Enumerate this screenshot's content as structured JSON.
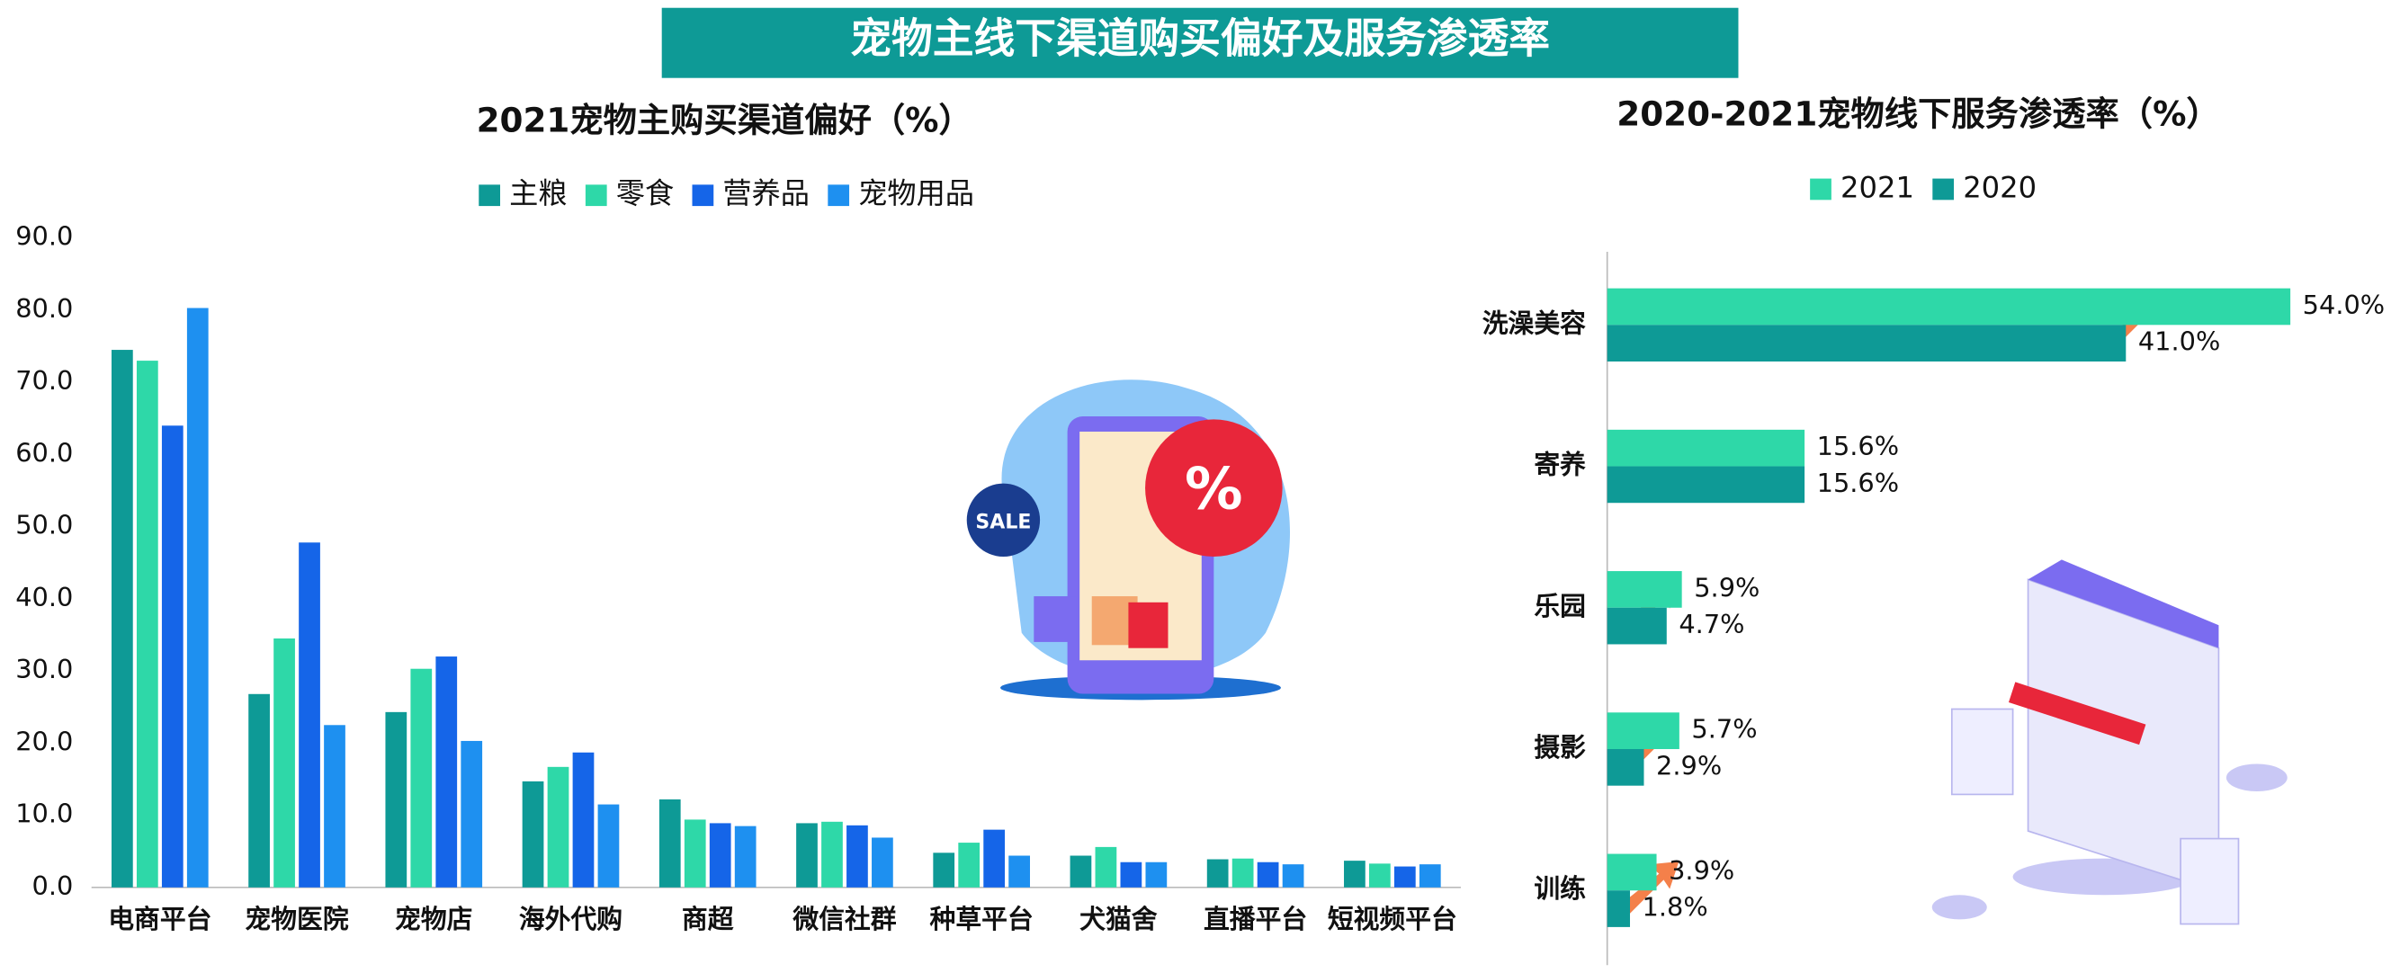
{
  "title": "宠物主线下渠道购买偏好及服务渗透率",
  "chart_data": [
    {
      "type": "bar",
      "title": "2021宠物主购买渠道偏好（%）",
      "categories": [
        "电商平台",
        "宠物医院",
        "宠物店",
        "海外代购",
        "商超",
        "微信社群",
        "种草平台",
        "犬猫舍",
        "直播平台",
        "短视频平台"
      ],
      "series": [
        {
          "name": "主粮",
          "color": "#0e9a96",
          "values": [
            74.5,
            26.8,
            24.3,
            14.7,
            12.2,
            8.9,
            4.8,
            4.4,
            3.9,
            3.7
          ]
        },
        {
          "name": "零食",
          "color": "#2ed8a8",
          "values": [
            73.0,
            34.5,
            30.3,
            16.7,
            9.4,
            9.1,
            6.2,
            5.6,
            4.0,
            3.3
          ]
        },
        {
          "name": "营养品",
          "color": "#1565e8",
          "values": [
            64.0,
            47.8,
            32.0,
            18.7,
            8.9,
            8.6,
            8.0,
            3.5,
            3.5,
            2.9
          ]
        },
        {
          "name": "宠物用品",
          "color": "#1e90f0",
          "values": [
            80.3,
            22.5,
            20.3,
            11.5,
            8.5,
            6.9,
            4.4,
            3.5,
            3.2,
            3.2
          ]
        }
      ],
      "ylim": [
        0,
        90
      ],
      "yticks": [
        {
          "value": 0,
          "label": "0.0"
        },
        {
          "value": 10,
          "label": "10.0"
        },
        {
          "value": 20,
          "label": "20.0"
        },
        {
          "value": 30,
          "label": "30.0"
        },
        {
          "value": 40,
          "label": "40.0"
        },
        {
          "value": 50,
          "label": "50.0"
        },
        {
          "value": 60,
          "label": "60.0"
        },
        {
          "value": 70,
          "label": "70.0"
        },
        {
          "value": 80,
          "label": "80.0"
        },
        {
          "value": 90,
          "label": "90.0"
        }
      ],
      "grid": false,
      "legend": "top"
    },
    {
      "type": "hbar",
      "title": "2020-2021宠物线下服务渗透率（%）",
      "categories": [
        "洗澡美容",
        "寄养",
        "乐园",
        "摄影",
        "训练"
      ],
      "series": [
        {
          "name": "2021",
          "color": "#2ed8a8",
          "values": [
            54.0,
            15.6,
            5.9,
            5.7,
            3.9
          ],
          "value_labels": [
            "54.0%",
            "15.6%",
            "5.9%",
            "5.7%",
            "3.9%"
          ]
        },
        {
          "name": "2020",
          "color": "#0e9a96",
          "values": [
            41.0,
            15.6,
            4.7,
            2.9,
            1.8
          ],
          "value_labels": [
            "41.0%",
            "15.6%",
            "4.7%",
            "2.9%",
            "1.8%"
          ]
        }
      ],
      "xlim": [
        0,
        54
      ],
      "legend": "top"
    }
  ]
}
